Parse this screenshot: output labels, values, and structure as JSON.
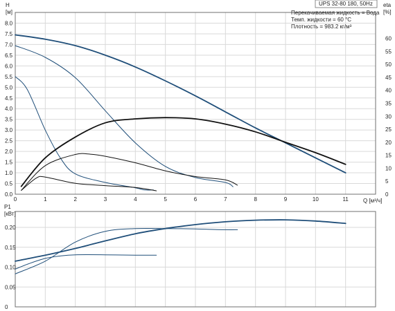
{
  "header": {
    "model": "UPS 32-80 180, 50Hz",
    "liquid": "Перекачиваемая жидкость = Вода",
    "temperature": "Темп. жидкости = 60 °C",
    "density": "Плотность = 983.2 кг/м³"
  },
  "colors": {
    "blue": "#1f4e79",
    "black": "#111111",
    "grid": "#d9d9d9"
  },
  "chart_data": [
    {
      "type": "line",
      "title": "",
      "xlabel": "Q [м³/ч]",
      "ylabel": "H [м]",
      "y2label": "eta [%]",
      "xlim": [
        0,
        12
      ],
      "ylim": [
        0,
        8.5
      ],
      "y2lim": [
        0,
        70
      ],
      "grid": true,
      "x_ticks": [
        "0",
        "1",
        "2",
        "3",
        "4",
        "5",
        "6",
        "7",
        "8",
        "9",
        "10",
        "11"
      ],
      "y_ticks": [
        "0.0",
        "0.5",
        "1.0",
        "1.5",
        "2.0",
        "2.5",
        "3.0",
        "3.5",
        "4.0",
        "4.5",
        "5.0",
        "5.5",
        "6.0",
        "6.5",
        "7.0",
        "7.5",
        "8.0"
      ],
      "y2_ticks": [
        "0",
        "5",
        "10",
        "15",
        "20",
        "25",
        "30",
        "35",
        "40",
        "45",
        "50",
        "55",
        "60"
      ],
      "series": [
        {
          "color": "#1f4e79",
          "width": 1.8,
          "axis": "left",
          "points": [
            [
              0,
              7.45
            ],
            [
              1,
              7.25
            ],
            [
              2,
              6.95
            ],
            [
              3,
              6.5
            ],
            [
              4,
              5.95
            ],
            [
              5,
              5.3
            ],
            [
              6,
              4.6
            ],
            [
              7,
              3.85
            ],
            [
              8,
              3.1
            ],
            [
              9,
              2.4
            ],
            [
              10,
              1.7
            ],
            [
              11,
              1.0
            ]
          ]
        },
        {
          "color": "#1f4e79",
          "width": 1.0,
          "axis": "left",
          "points": [
            [
              0,
              6.95
            ],
            [
              1,
              6.4
            ],
            [
              2,
              5.45
            ],
            [
              3,
              3.9
            ],
            [
              4,
              2.4
            ],
            [
              5,
              1.3
            ],
            [
              6,
              0.78
            ],
            [
              7,
              0.55
            ],
            [
              7.25,
              0.35
            ]
          ]
        },
        {
          "color": "#1f4e79",
          "width": 1.0,
          "axis": "left",
          "points": [
            [
              0,
              5.5
            ],
            [
              0.4,
              4.9
            ],
            [
              1,
              3.0
            ],
            [
              1.5,
              1.7
            ],
            [
              2,
              0.95
            ],
            [
              3,
              0.55
            ],
            [
              4,
              0.3
            ],
            [
              4.3,
              0.2
            ],
            [
              4.6,
              0.2
            ]
          ]
        },
        {
          "color": "#111111",
          "width": 1.8,
          "axis": "right",
          "points": [
            [
              0.2,
              3
            ],
            [
              1,
              14
            ],
            [
              2,
              22
            ],
            [
              3,
              27.5
            ],
            [
              4,
              29
            ],
            [
              5,
              29.5
            ],
            [
              6,
              29
            ],
            [
              7,
              27
            ],
            [
              8,
              24
            ],
            [
              9,
              20
            ],
            [
              10,
              16
            ],
            [
              11,
              11.5
            ]
          ]
        },
        {
          "color": "#111111",
          "width": 1.0,
          "axis": "right",
          "points": [
            [
              0.2,
              1.5
            ],
            [
              1,
              11
            ],
            [
              2,
              15.3
            ],
            [
              2.5,
              15.4
            ],
            [
              3,
              14.6
            ],
            [
              4,
              12.1
            ],
            [
              5,
              9
            ],
            [
              6,
              6.8
            ],
            [
              7,
              5.5
            ],
            [
              7.4,
              3.5
            ]
          ]
        },
        {
          "color": "#111111",
          "width": 1.0,
          "axis": "right",
          "points": [
            [
              0.2,
              1.5
            ],
            [
              0.7,
              6.2
            ],
            [
              1,
              6.6
            ],
            [
              2,
              4.2
            ],
            [
              3,
              3.3
            ],
            [
              4,
              2.6
            ],
            [
              4.7,
              1.3
            ]
          ]
        }
      ]
    },
    {
      "type": "line",
      "title": "",
      "xlabel": "",
      "ylabel": "P1 [кВт]",
      "xlim": [
        0,
        12
      ],
      "ylim": [
        0,
        0.24
      ],
      "grid": true,
      "y_ticks": [
        "0",
        "0.05",
        "0.10",
        "0.15",
        "0.20"
      ],
      "series": [
        {
          "color": "#1f4e79",
          "width": 1.8,
          "points": [
            [
              0,
              0.115
            ],
            [
              1,
              0.13
            ],
            [
              2,
              0.147
            ],
            [
              3,
              0.166
            ],
            [
              4,
              0.184
            ],
            [
              5,
              0.197
            ],
            [
              6,
              0.207
            ],
            [
              7,
              0.214
            ],
            [
              8,
              0.218
            ],
            [
              9,
              0.219
            ],
            [
              10,
              0.216
            ],
            [
              11,
              0.21
            ]
          ]
        },
        {
          "color": "#1f4e79",
          "width": 1.0,
          "points": [
            [
              0,
              0.083
            ],
            [
              1,
              0.115
            ],
            [
              2,
              0.163
            ],
            [
              3,
              0.19
            ],
            [
              4,
              0.197
            ],
            [
              5,
              0.197
            ],
            [
              6,
              0.196
            ],
            [
              7,
              0.194
            ],
            [
              7.4,
              0.194
            ]
          ]
        },
        {
          "color": "#1f4e79",
          "width": 1.0,
          "points": [
            [
              0,
              0.095
            ],
            [
              0.5,
              0.11
            ],
            [
              1,
              0.122
            ],
            [
              1.5,
              0.128
            ],
            [
              2,
              0.131
            ],
            [
              3,
              0.131
            ],
            [
              4,
              0.13
            ],
            [
              4.7,
              0.13
            ]
          ]
        }
      ]
    }
  ]
}
